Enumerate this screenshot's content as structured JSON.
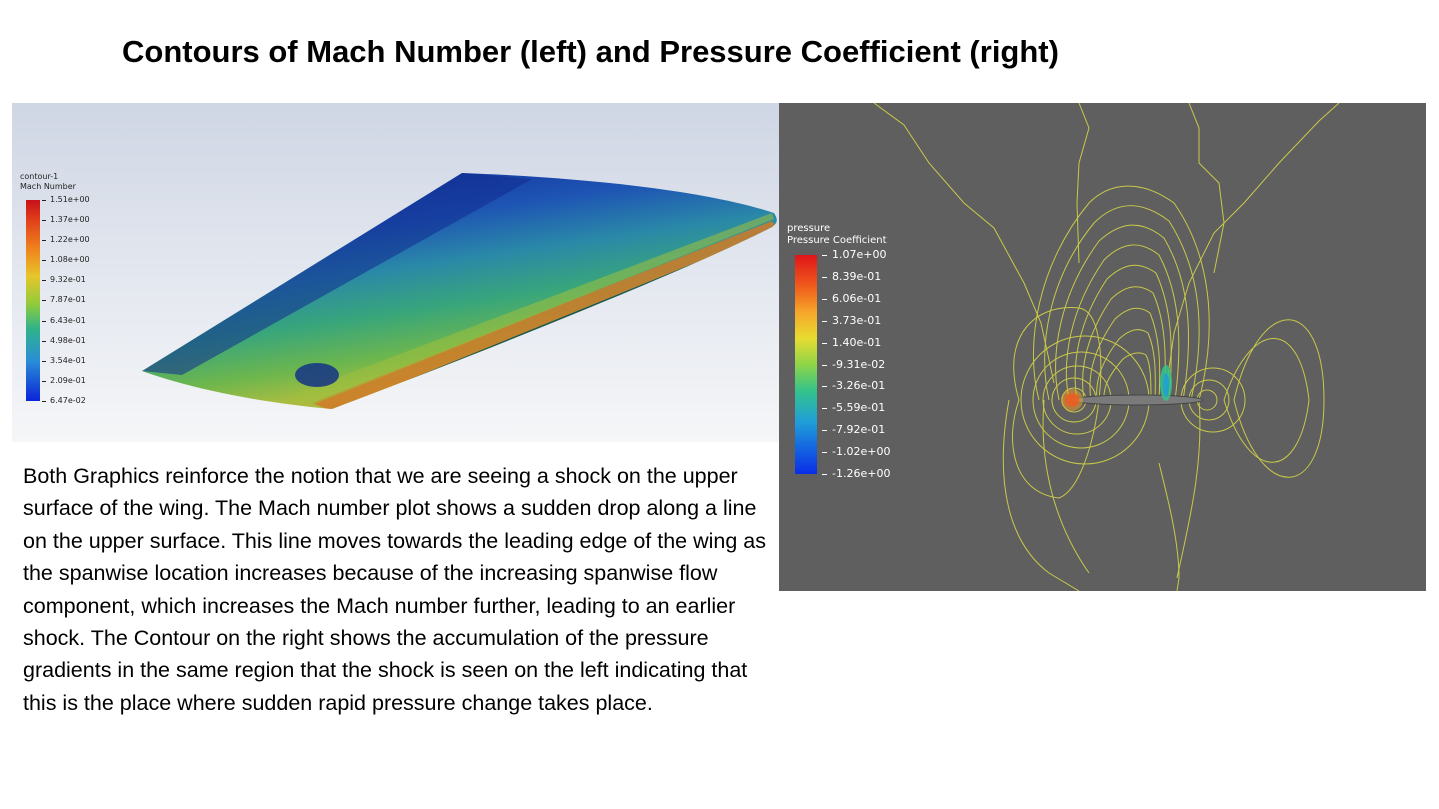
{
  "slide": {
    "title": "Contours of Mach Number (left) and Pressure Coefficient (right)"
  },
  "mach_contour": {
    "legend_name": "contour-1",
    "legend_quantity": "Mach Number",
    "colormap": [
      "#c8101a",
      "#f0861e",
      "#e6c62a",
      "#8fcb3c",
      "#2fb38a",
      "#2a8ed6",
      "#0a24d8"
    ],
    "ticks": [
      "1.51e+00",
      "1.37e+00",
      "1.22e+00",
      "1.08e+00",
      "9.32e-01",
      "7.87e-01",
      "6.43e-01",
      "4.98e-01",
      "3.54e-01",
      "2.09e-01",
      "6.47e-02"
    ]
  },
  "pressure_contour": {
    "legend_name": "pressure",
    "legend_quantity": "Pressure Coefficient",
    "colormap": [
      "#e0141a",
      "#f6a52a",
      "#e8dc30",
      "#8fd548",
      "#34c38a",
      "#1f9fd8",
      "#0a2de8"
    ],
    "ticks": [
      "1.07e+00",
      "8.39e-01",
      "6.06e-01",
      "3.73e-01",
      "1.40e-01",
      "-9.31e-02",
      "-3.26e-01",
      "-5.59e-01",
      "-7.92e-01",
      "-1.02e+00",
      "-1.26e+00"
    ],
    "background_color": "#5f5f5f",
    "isoline_color": "#c9c94a"
  },
  "body_text": "Both Graphics reinforce the notion that we are seeing a shock on the upper surface of the wing. The Mach number plot shows a sudden drop along a line on the upper surface. This line moves towards the leading edge of the wing as the spanwise location increases because of the increasing spanwise flow component, which increases the Mach number further, leading to an earlier shock. The Contour on the right shows the accumulation of the pressure gradients in the same region that the shock is seen on the left indicating that this is the place where sudden rapid pressure change takes place."
}
